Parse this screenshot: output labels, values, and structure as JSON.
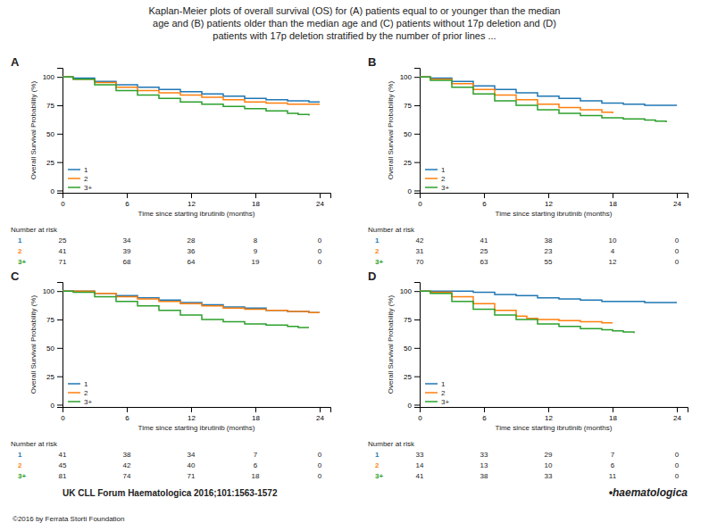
{
  "title": "Kaplan-Meier plots of overall survival (OS) for (A) patients equal to or younger than the median\nage and (B) patients older than the median age and (C) patients without 17p deletion and (D)\npatients with 17p deletion stratified by the number of prior lines ...",
  "annotations": [
    "UK CLL Forum Haematologica 2016;101:1563-1572",
    "©2016 by Ferrata Storti Foundation",
    "•haematologica"
  ],
  "chart_data": [
    {
      "type": "step",
      "title": "A",
      "xlabel": "Time since starting ibrutinib (months)",
      "ylabel": "Overall Survival Probability (%)",
      "xlim": [
        0,
        25
      ],
      "ylim": [
        -2,
        108
      ],
      "xticks": [
        0,
        6,
        12,
        18,
        24
      ],
      "yticks": [
        0,
        25,
        50,
        75,
        100
      ],
      "legend": "lower left",
      "series": [
        {
          "name": "1",
          "x": [
            0,
            1,
            3,
            5,
            7,
            9,
            11,
            13,
            15,
            17,
            19,
            21,
            23,
            24
          ],
          "values": [
            100,
            99,
            96,
            93,
            91,
            89,
            87,
            85,
            83,
            81,
            80,
            79,
            78,
            78
          ]
        },
        {
          "name": "2",
          "x": [
            0,
            1,
            3,
            5,
            7,
            9,
            11,
            13,
            15,
            17,
            19,
            21,
            23,
            24
          ],
          "values": [
            100,
            98,
            95,
            91,
            88,
            86,
            84,
            82,
            80,
            78,
            77,
            76,
            76,
            76
          ]
        },
        {
          "name": "3+",
          "x": [
            0,
            1,
            3,
            5,
            7,
            9,
            11,
            13,
            15,
            17,
            19,
            21,
            22,
            23
          ],
          "values": [
            100,
            98,
            93,
            88,
            84,
            81,
            78,
            76,
            74,
            72,
            70,
            68,
            67,
            66
          ]
        }
      ],
      "at_risk": {
        "label": "Number at risk",
        "rows": [
          {
            "name": "1",
            "values": [
              25,
              34,
              28,
              8,
              0
            ]
          },
          {
            "name": "2",
            "values": [
              41,
              39,
              36,
              9,
              0
            ]
          },
          {
            "name": "3+",
            "values": [
              71,
              68,
              64,
              19,
              0
            ]
          }
        ]
      }
    },
    {
      "type": "step",
      "title": "B",
      "xlabel": "Time since starting ibrutinib (months)",
      "ylabel": "Overall Survival Probability (%)",
      "xlim": [
        0,
        25
      ],
      "ylim": [
        -2,
        108
      ],
      "xticks": [
        0,
        6,
        12,
        18,
        24
      ],
      "yticks": [
        0,
        25,
        50,
        75,
        100
      ],
      "legend": "lower left",
      "series": [
        {
          "name": "1",
          "x": [
            0,
            1,
            3,
            5,
            7,
            9,
            11,
            13,
            15,
            17,
            19,
            21,
            23,
            24
          ],
          "values": [
            100,
            99,
            96,
            92,
            89,
            86,
            83,
            81,
            79,
            77,
            76,
            75,
            75,
            75
          ]
        },
        {
          "name": "2",
          "x": [
            0,
            1,
            3,
            5,
            7,
            9,
            11,
            13,
            15,
            17,
            18
          ],
          "values": [
            100,
            98,
            94,
            89,
            84,
            80,
            76,
            73,
            71,
            69,
            68
          ]
        },
        {
          "name": "3+",
          "x": [
            0,
            1,
            3,
            5,
            7,
            9,
            11,
            13,
            15,
            17,
            19,
            21,
            22,
            23
          ],
          "values": [
            100,
            97,
            91,
            85,
            79,
            75,
            71,
            68,
            66,
            64,
            63,
            62,
            61,
            60
          ]
        }
      ],
      "at_risk": {
        "label": "Number at risk",
        "rows": [
          {
            "name": "1",
            "values": [
              42,
              41,
              38,
              10,
              0
            ]
          },
          {
            "name": "2",
            "values": [
              31,
              25,
              23,
              4,
              0
            ]
          },
          {
            "name": "3+",
            "values": [
              70,
              63,
              55,
              12,
              0
            ]
          }
        ]
      }
    },
    {
      "type": "step",
      "title": "C",
      "xlabel": "Time since starting ibrutinib (months)",
      "ylabel": "Overall Survival Probability (%)",
      "xlim": [
        0,
        25
      ],
      "ylim": [
        -2,
        108
      ],
      "xticks": [
        0,
        6,
        12,
        18,
        24
      ],
      "yticks": [
        0,
        25,
        50,
        75,
        100
      ],
      "legend": "lower left",
      "series": [
        {
          "name": "1",
          "x": [
            0,
            1,
            3,
            5,
            7,
            9,
            11,
            13,
            15,
            17,
            19,
            21,
            23,
            24
          ],
          "values": [
            100,
            100,
            98,
            96,
            94,
            92,
            90,
            88,
            86,
            85,
            83,
            82,
            81,
            81
          ]
        },
        {
          "name": "2",
          "x": [
            0,
            1,
            3,
            5,
            7,
            9,
            11,
            13,
            15,
            17,
            19,
            21,
            23,
            24
          ],
          "values": [
            100,
            100,
            98,
            95,
            93,
            91,
            89,
            87,
            85,
            84,
            83,
            82,
            81,
            81
          ]
        },
        {
          "name": "3+",
          "x": [
            0,
            1,
            3,
            5,
            7,
            9,
            11,
            13,
            15,
            17,
            19,
            21,
            22,
            23
          ],
          "values": [
            100,
            99,
            95,
            91,
            87,
            83,
            79,
            75,
            73,
            71,
            70,
            69,
            68,
            68
          ]
        }
      ],
      "at_risk": {
        "label": "Number at risk",
        "rows": [
          {
            "name": "1",
            "values": [
              41,
              38,
              34,
              7,
              0
            ]
          },
          {
            "name": "2",
            "values": [
              45,
              42,
              40,
              6,
              0
            ]
          },
          {
            "name": "3+",
            "values": [
              81,
              74,
              71,
              18,
              0
            ]
          }
        ]
      }
    },
    {
      "type": "step",
      "title": "D",
      "xlabel": "Time since starting ibrutinib (months)",
      "ylabel": "Overall Survival Probability (%)",
      "xlim": [
        0,
        25
      ],
      "ylim": [
        -2,
        108
      ],
      "xticks": [
        0,
        6,
        12,
        18,
        24
      ],
      "yticks": [
        0,
        25,
        50,
        75,
        100
      ],
      "legend": "lower left",
      "series": [
        {
          "name": "1",
          "x": [
            0,
            1,
            3,
            5,
            7,
            9,
            11,
            13,
            15,
            17,
            19,
            21,
            23,
            24
          ],
          "values": [
            100,
            100,
            100,
            99,
            97,
            96,
            94,
            93,
            92,
            91,
            91,
            90,
            90,
            90
          ]
        },
        {
          "name": "2",
          "x": [
            0,
            1,
            3,
            5,
            7,
            9,
            10,
            11,
            13,
            15,
            16,
            17,
            18
          ],
          "values": [
            100,
            99,
            95,
            89,
            83,
            78,
            76,
            75,
            74,
            73,
            73,
            72,
            72
          ]
        },
        {
          "name": "3+",
          "x": [
            0,
            1,
            3,
            5,
            7,
            9,
            11,
            13,
            15,
            17,
            18,
            19,
            20
          ],
          "values": [
            100,
            98,
            91,
            84,
            79,
            75,
            71,
            69,
            67,
            66,
            65,
            64,
            63
          ]
        }
      ],
      "at_risk": {
        "label": "Number at risk",
        "rows": [
          {
            "name": "1",
            "values": [
              33,
              33,
              29,
              7,
              0
            ]
          },
          {
            "name": "2",
            "values": [
              14,
              13,
              10,
              6,
              0
            ]
          },
          {
            "name": "3+",
            "values": [
              41,
              38,
              33,
              11,
              0
            ]
          }
        ]
      }
    }
  ]
}
